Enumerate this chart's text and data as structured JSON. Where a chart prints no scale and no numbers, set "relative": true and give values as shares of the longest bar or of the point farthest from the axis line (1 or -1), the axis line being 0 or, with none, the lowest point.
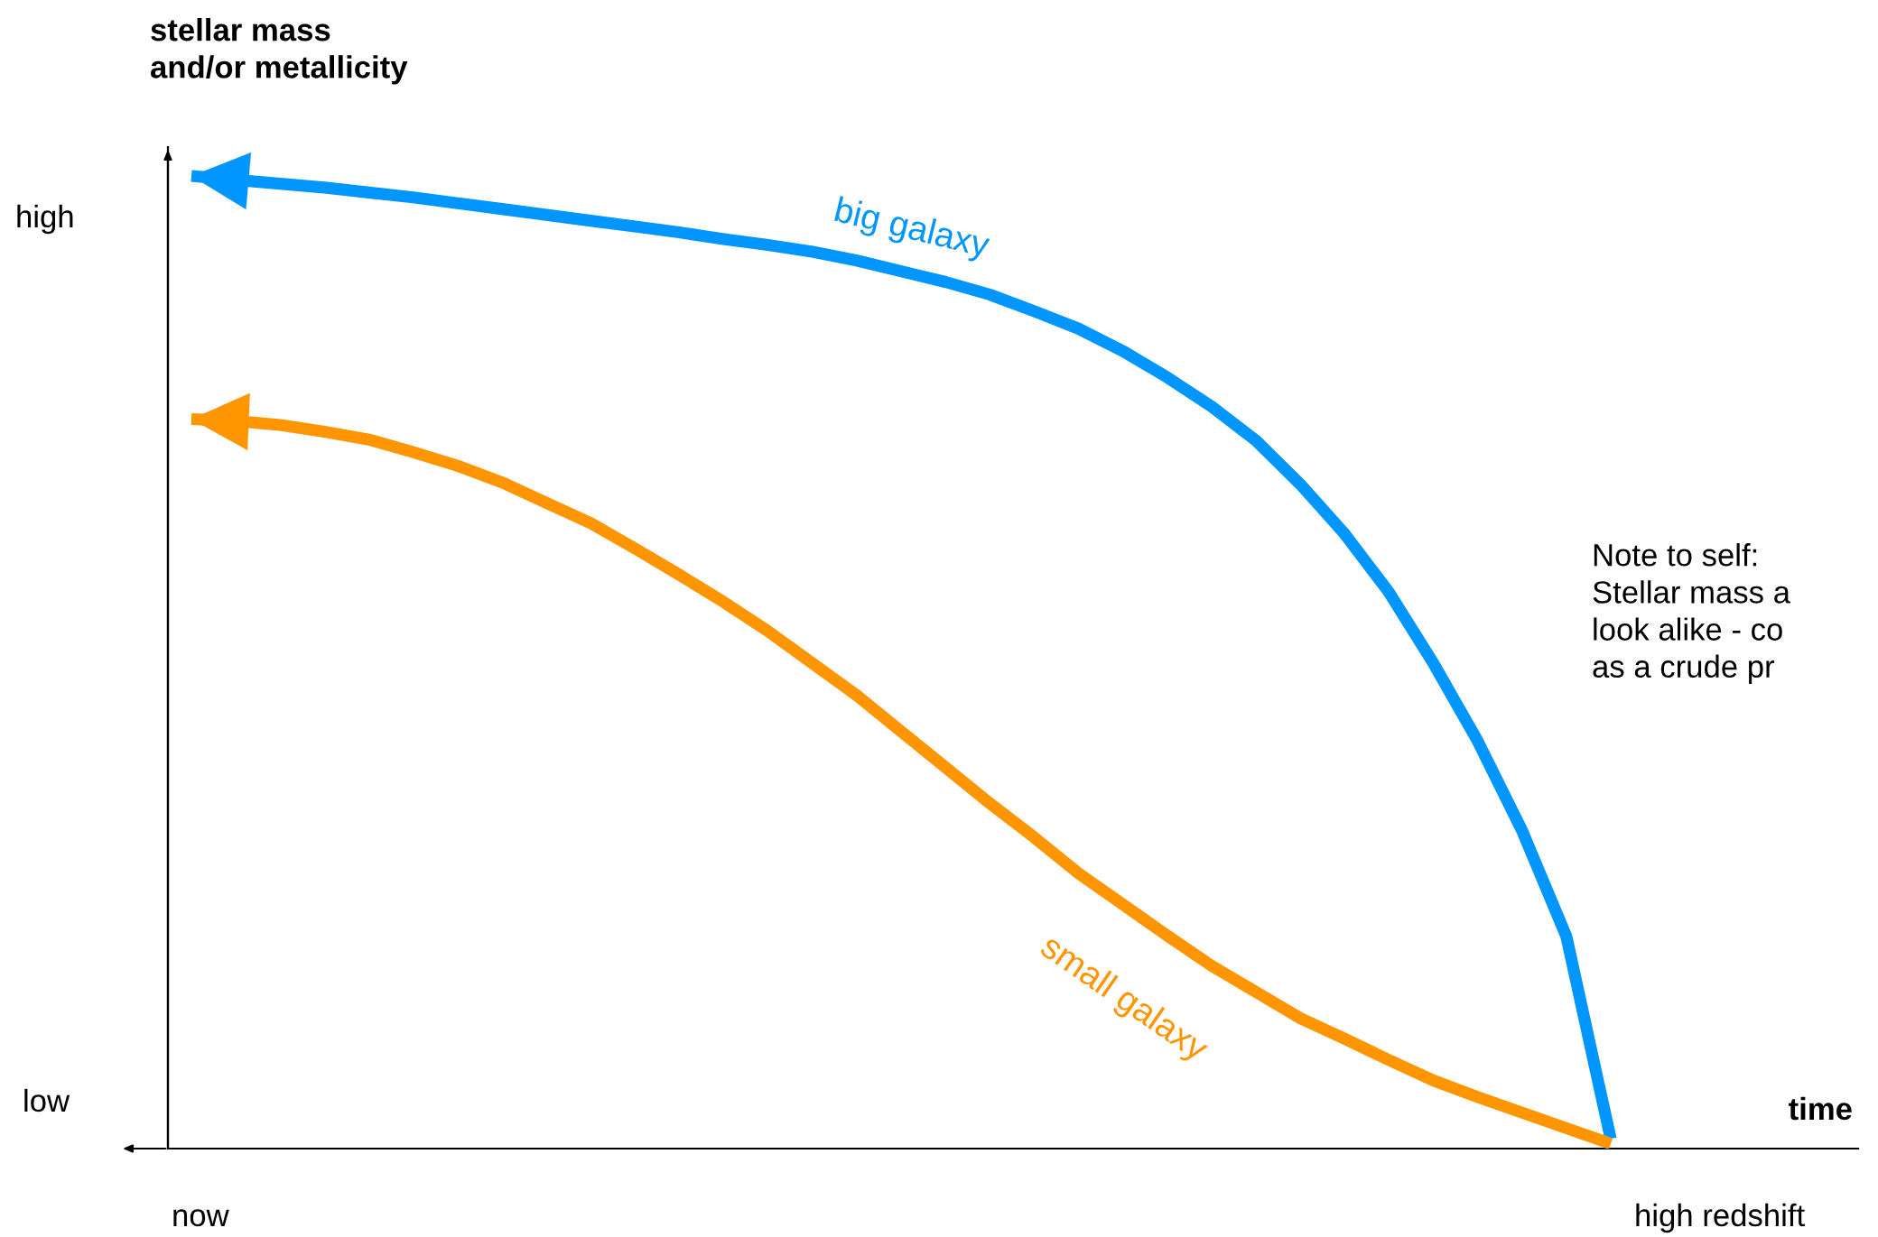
{
  "chart_data": {
    "type": "line",
    "relative": true,
    "xlabel": "time",
    "ylabel": "stellar mass\nand/or metallicity",
    "categories": [
      null,
      null,
      null,
      null,
      null,
      null,
      null,
      null,
      null,
      null,
      null,
      null,
      null,
      null,
      null,
      null,
      null,
      null,
      null,
      null,
      null,
      null,
      null,
      null,
      null,
      null,
      null,
      null,
      null,
      null,
      null,
      null,
      null
    ],
    "series": [
      {
        "name": "big galaxy",
        "color": "#0096ff",
        "values": [
          1.0,
          0.996,
          0.992,
          0.988,
          0.983,
          0.978,
          0.972,
          0.966,
          0.96,
          0.954,
          0.948,
          0.942,
          0.935,
          0.929,
          0.922,
          0.913,
          0.902,
          0.891,
          0.878,
          0.861,
          0.843,
          0.82,
          0.793,
          0.763,
          0.728,
          0.683,
          0.632,
          0.572,
          0.499,
          0.419,
          0.327,
          0.218,
          0.01
        ]
      },
      {
        "name": "small galaxy",
        "color": "#ff9500",
        "values": [
          0.75,
          0.748,
          0.744,
          0.737,
          0.729,
          0.716,
          0.702,
          0.685,
          0.664,
          0.643,
          0.617,
          0.59,
          0.562,
          0.532,
          0.499,
          0.466,
          0.429,
          0.392,
          0.355,
          0.32,
          0.283,
          0.251,
          0.219,
          0.188,
          0.161,
          0.134,
          0.113,
          0.091,
          0.07,
          0.053,
          0.037,
          0.021,
          0.005
        ]
      }
    ],
    "annotations": [
      "high",
      "low",
      "now",
      "high redshift",
      "Note to self:\nStellar mass a\nlook alike - co\nas a crude pr"
    ],
    "marker": "none",
    "line_style": "solid",
    "legend": false
  }
}
